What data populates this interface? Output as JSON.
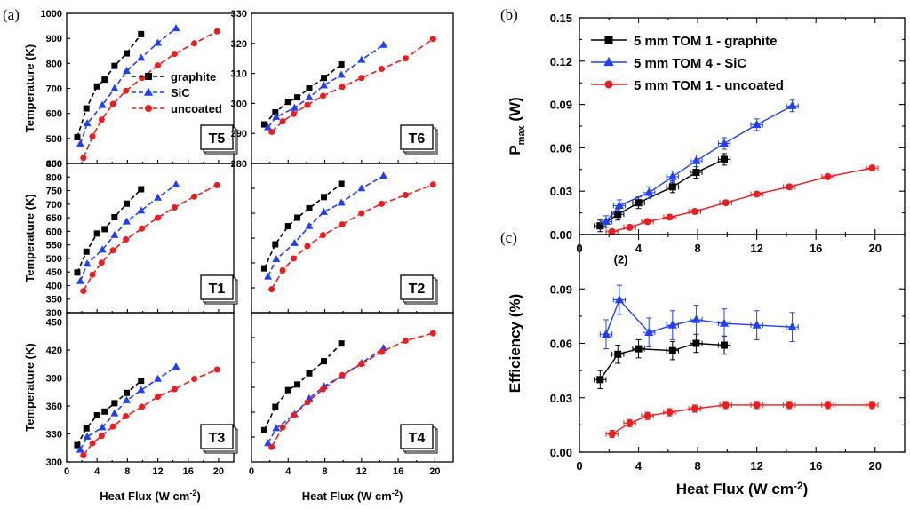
{
  "colors": {
    "graphite": "#000000",
    "SiC": "#1f3fff",
    "uncoated": "#ee1c1c"
  },
  "chart_data": [
    {
      "id": "T5",
      "panel": "(a)",
      "type": "line",
      "tag": "T5",
      "xlabel": "",
      "ylabel": "Temperature (K)",
      "xlim": [
        0,
        22
      ],
      "ylim": [
        400,
        1000
      ],
      "xticks": [],
      "yticks": [
        400,
        500,
        600,
        700,
        800,
        900,
        1000
      ],
      "legend": [
        "graphite",
        "SiC",
        "uncoated"
      ],
      "series": [
        {
          "name": "graphite",
          "marker": "square",
          "x": [
            1.4,
            2.6,
            4.0,
            5.0,
            6.3,
            7.9,
            9.8
          ],
          "y": [
            505,
            620,
            708,
            735,
            790,
            840,
            917
          ]
        },
        {
          "name": "SiC",
          "marker": "triangle",
          "x": [
            1.8,
            2.7,
            4.7,
            6.3,
            7.9,
            9.8,
            12.0,
            14.4
          ],
          "y": [
            478,
            560,
            633,
            700,
            770,
            822,
            882,
            940
          ]
        },
        {
          "name": "uncoated",
          "marker": "circle",
          "x": [
            2.2,
            3.4,
            4.6,
            6.1,
            7.8,
            9.9,
            12.0,
            14.2,
            16.8,
            19.8
          ],
          "y": [
            422,
            508,
            575,
            638,
            690,
            742,
            792,
            838,
            880,
            928
          ]
        }
      ]
    },
    {
      "id": "T6",
      "type": "line",
      "tag": "T6",
      "xlabel": "",
      "ylabel": "",
      "xlim": [
        0,
        22
      ],
      "ylim": [
        280,
        330
      ],
      "xticks": [],
      "yticks": [
        280,
        290,
        300,
        310,
        320,
        330
      ],
      "series": [
        {
          "name": "graphite",
          "marker": "square",
          "x": [
            1.4,
            2.6,
            4.0,
            5.0,
            6.3,
            7.9,
            9.8
          ],
          "y": [
            293,
            297,
            300.5,
            302,
            305,
            308.5,
            313
          ]
        },
        {
          "name": "SiC",
          "marker": "triangle",
          "x": [
            1.8,
            2.7,
            4.7,
            6.3,
            7.9,
            9.8,
            12.0,
            14.4
          ],
          "y": [
            292,
            295.5,
            298.5,
            302,
            306,
            309.5,
            314.5,
            319.5
          ]
        },
        {
          "name": "uncoated",
          "marker": "circle",
          "x": [
            2.2,
            3.4,
            4.6,
            6.1,
            7.8,
            9.9,
            12.0,
            14.2,
            16.8,
            19.8
          ],
          "y": [
            290.5,
            294,
            296.5,
            299.5,
            302.5,
            305.5,
            308.5,
            311.5,
            315,
            321.5
          ]
        }
      ]
    },
    {
      "id": "T1",
      "type": "line",
      "tag": "T1",
      "xlabel": "",
      "ylabel": "Temperature (K)",
      "xlim": [
        0,
        22
      ],
      "ylim": [
        300,
        850
      ],
      "xticks": [],
      "yticks": [
        300,
        350,
        400,
        450,
        500,
        550,
        600,
        650,
        700,
        750,
        800,
        850
      ],
      "series": [
        {
          "name": "graphite",
          "marker": "square",
          "x": [
            1.4,
            2.6,
            4.0,
            5.0,
            6.3,
            7.9,
            9.8
          ],
          "y": [
            448,
            525,
            592,
            608,
            652,
            702,
            755
          ]
        },
        {
          "name": "SiC",
          "marker": "triangle",
          "x": [
            1.8,
            2.7,
            4.7,
            6.3,
            7.9,
            9.8,
            12.0,
            14.4
          ],
          "y": [
            416,
            480,
            532,
            586,
            636,
            676,
            724,
            772
          ]
        },
        {
          "name": "uncoated",
          "marker": "circle",
          "x": [
            2.2,
            3.4,
            4.6,
            6.1,
            7.8,
            9.9,
            12.0,
            14.2,
            16.8,
            19.8
          ],
          "y": [
            380,
            440,
            484,
            530,
            570,
            610,
            650,
            688,
            728,
            770
          ]
        }
      ]
    },
    {
      "id": "T2",
      "type": "line",
      "tag": "T2",
      "xlabel": "",
      "ylabel": "",
      "xlim": [
        0,
        22
      ],
      "ylim": [
        300,
        900
      ],
      "xticks": [],
      "yticks": [],
      "series": [
        {
          "name": "graphite",
          "marker": "square",
          "x": [
            1.4,
            2.6,
            4.0,
            5.0,
            6.3,
            7.9,
            9.8
          ],
          "y": [
            478,
            575,
            648,
            682,
            720,
            765,
            818
          ]
        },
        {
          "name": "SiC",
          "marker": "triangle",
          "x": [
            1.8,
            2.7,
            4.7,
            6.3,
            7.9,
            9.8,
            12.0,
            14.4
          ],
          "y": [
            445,
            515,
            580,
            648,
            705,
            742,
            800,
            850
          ]
        },
        {
          "name": "uncoated",
          "marker": "circle",
          "x": [
            2.2,
            3.4,
            4.6,
            6.1,
            7.8,
            9.9,
            12.0,
            14.2,
            16.8,
            19.8
          ],
          "y": [
            394,
            470,
            518,
            568,
            612,
            655,
            700,
            738,
            773,
            815
          ]
        }
      ]
    },
    {
      "id": "T3",
      "type": "line",
      "tag": "T3",
      "xlabel": "Heat Flux (W cm-2)",
      "ylabel": "Temperature (K)",
      "xlim": [
        0,
        22
      ],
      "ylim": [
        300,
        460
      ],
      "xticks": [
        0,
        4,
        8,
        12,
        16,
        20
      ],
      "yticks": [
        300,
        330,
        360,
        390,
        420,
        450
      ],
      "series": [
        {
          "name": "graphite",
          "marker": "square",
          "x": [
            1.4,
            2.6,
            4.0,
            5.0,
            6.3,
            7.9,
            9.8
          ],
          "y": [
            318,
            336,
            350,
            354,
            363,
            374,
            387
          ]
        },
        {
          "name": "SiC",
          "marker": "triangle",
          "x": [
            1.8,
            2.7,
            4.7,
            6.3,
            7.9,
            9.8,
            12.0,
            14.4
          ],
          "y": [
            313,
            327,
            337,
            352,
            366,
            377,
            389,
            402
          ]
        },
        {
          "name": "uncoated",
          "marker": "circle",
          "x": [
            2.2,
            3.4,
            4.6,
            6.1,
            7.8,
            9.9,
            12.0,
            14.2,
            16.8,
            19.8
          ],
          "y": [
            307,
            320,
            328,
            338,
            349,
            359,
            370,
            378,
            389,
            399
          ]
        }
      ]
    },
    {
      "id": "T4",
      "type": "line",
      "tag": "T4",
      "xlabel": "Heat Flux (W cm-2)",
      "ylabel": "",
      "xlim": [
        0,
        22
      ],
      "ylim": [
        300,
        460
      ],
      "xticks": [
        0,
        4,
        8,
        12,
        16,
        20
      ],
      "yticks": [],
      "series": [
        {
          "name": "graphite",
          "marker": "square",
          "x": [
            1.4,
            2.6,
            4.0,
            5.0,
            6.3,
            7.9,
            9.8
          ],
          "y": [
            334,
            359,
            377,
            383,
            395,
            408,
            427
          ]
        },
        {
          "name": "SiC",
          "marker": "triangle",
          "x": [
            1.8,
            2.7,
            4.7,
            6.3,
            7.9,
            9.8,
            12.0,
            14.4
          ],
          "y": [
            320,
            336,
            351,
            368,
            381,
            392,
            406,
            422
          ]
        },
        {
          "name": "uncoated",
          "marker": "circle",
          "x": [
            2.2,
            3.4,
            4.6,
            6.1,
            7.8,
            9.9,
            12.0,
            14.2,
            16.8,
            19.8
          ],
          "y": [
            316,
            337,
            350,
            364,
            378,
            393,
            405,
            418,
            430,
            438
          ]
        }
      ]
    },
    {
      "id": "pmax",
      "panel": "(b)",
      "type": "line",
      "xlabel": "",
      "ylabel": "Pmax (W)",
      "xlim": [
        0,
        22
      ],
      "ylim": [
        0,
        0.15
      ],
      "xticks": [
        0,
        4,
        8,
        12,
        16,
        20
      ],
      "yticks": [
        0.0,
        0.03,
        0.06,
        0.09,
        0.12,
        0.15
      ],
      "ytick_labels": [
        "0.00",
        "0.03",
        "0.06",
        "0.09",
        "0.12",
        "0.15"
      ],
      "legend": [
        "5 mm TOM 1 - graphite",
        "5 mm TOM 4 - SiC",
        "5 mm TOM 1 - uncoated"
      ],
      "series": [
        {
          "name": "5 mm TOM 1 - graphite",
          "marker": "square",
          "x": [
            1.4,
            2.6,
            4.0,
            6.3,
            7.9,
            9.8
          ],
          "y": [
            0.006,
            0.014,
            0.022,
            0.033,
            0.043,
            0.052
          ],
          "yerr": 0.004,
          "xerr": 0.4
        },
        {
          "name": "5 mm TOM 4 - SiC",
          "marker": "triangle",
          "x": [
            1.8,
            2.7,
            4.7,
            6.3,
            7.9,
            9.8,
            12.0,
            14.4
          ],
          "y": [
            0.009,
            0.02,
            0.029,
            0.04,
            0.051,
            0.063,
            0.076,
            0.089
          ],
          "yerr": 0.004,
          "xerr": 0.4
        },
        {
          "name": "5 mm TOM 1 - uncoated",
          "marker": "circle",
          "x": [
            2.2,
            3.4,
            4.6,
            6.1,
            7.8,
            9.9,
            12.0,
            14.2,
            16.8,
            19.8
          ],
          "y": [
            0.002,
            0.005,
            0.009,
            0.012,
            0.016,
            0.022,
            0.028,
            0.033,
            0.04,
            0.046
          ],
          "yerr": 0.0015,
          "xerr": 0.4
        }
      ]
    },
    {
      "id": "efficiency",
      "panel": "(c)",
      "type": "line",
      "xlabel": "Heat Flux (W cm-2)",
      "ylabel": "Efficiency (%)",
      "xlim": [
        0,
        22
      ],
      "ylim": [
        0,
        0.12
      ],
      "xticks": [
        0,
        4,
        8,
        12,
        16,
        20
      ],
      "yticks": [
        0.0,
        0.03,
        0.06,
        0.09
      ],
      "ytick_labels": [
        "0.00",
        "0.03",
        "0.06",
        "0.09"
      ],
      "annotation": "(2)",
      "series": [
        {
          "name": "5 mm TOM 1 - graphite",
          "marker": "square",
          "x": [
            1.4,
            2.6,
            4.0,
            6.3,
            7.9,
            9.8
          ],
          "y": [
            0.04,
            0.054,
            0.057,
            0.056,
            0.06,
            0.059
          ],
          "yerr": 0.005,
          "xerr": 0.4
        },
        {
          "name": "5 mm TOM 4 - SiC",
          "marker": "triangle",
          "x": [
            1.8,
            2.7,
            4.7,
            6.3,
            7.9,
            9.8,
            12.0,
            14.4
          ],
          "y": [
            0.065,
            0.084,
            0.066,
            0.07,
            0.073,
            0.071,
            0.07,
            0.069
          ],
          "yerr": 0.008,
          "xerr": 0.4
        },
        {
          "name": "5 mm TOM 1 - uncoated",
          "marker": "circle",
          "x": [
            2.2,
            3.4,
            4.6,
            6.1,
            7.8,
            9.9,
            12.0,
            14.2,
            16.8,
            19.8
          ],
          "y": [
            0.01,
            0.016,
            0.02,
            0.022,
            0.024,
            0.026,
            0.026,
            0.026,
            0.026,
            0.026
          ],
          "yerr": 0.002,
          "xerr": 0.4
        }
      ]
    }
  ]
}
